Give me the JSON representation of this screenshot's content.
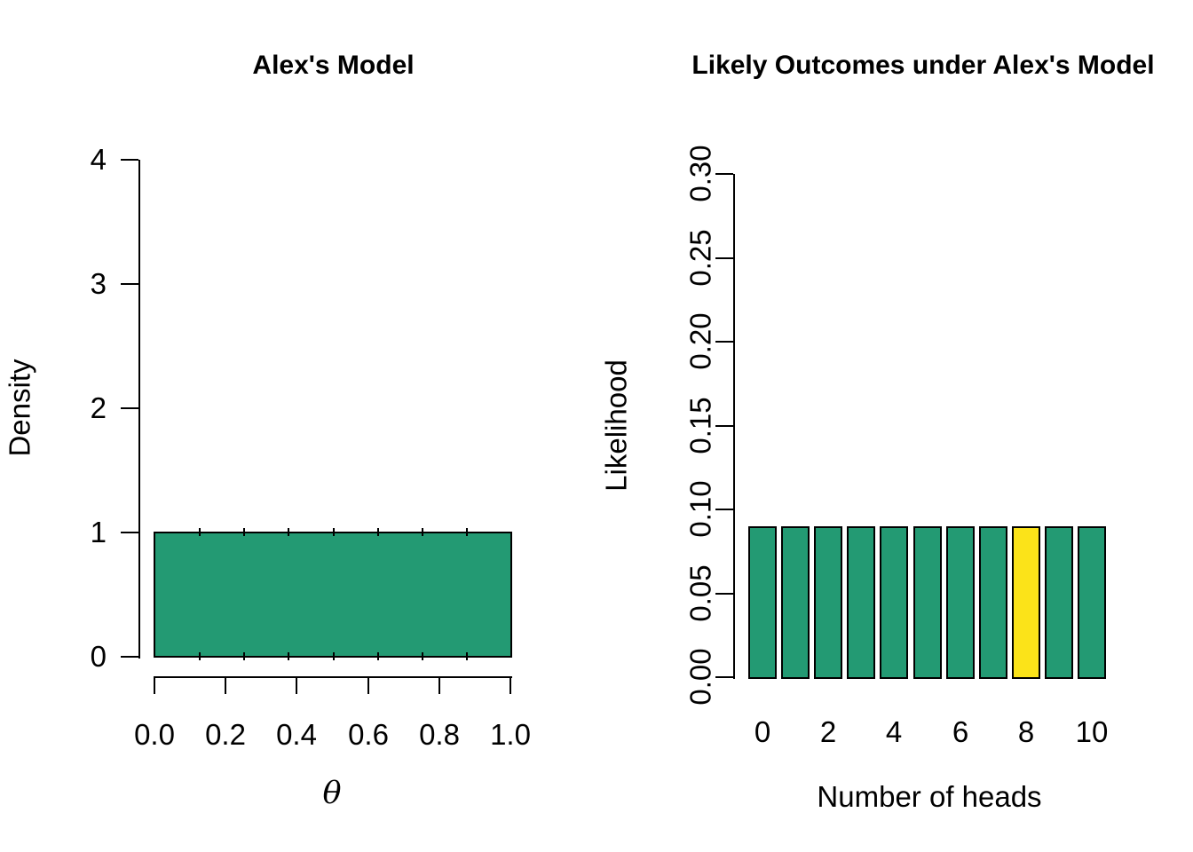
{
  "figure": {
    "background_color": "#ffffff",
    "axis_color": "#000000"
  },
  "chart_data": [
    {
      "type": "area",
      "title": "Alex's Model",
      "xlabel": "θ",
      "ylabel": "Density",
      "distribution": "uniform",
      "density_height": 1,
      "x_range": [
        0.0,
        1.0
      ],
      "xlim": [
        0.0,
        1.0
      ],
      "ylim": [
        0,
        4
      ],
      "x_ticks": [
        "0.0",
        "0.2",
        "0.4",
        "0.6",
        "0.8",
        "1.0"
      ],
      "y_ticks": [
        "0",
        "1",
        "2",
        "3",
        "4"
      ],
      "bins": 8,
      "grid": "off",
      "fill_color": "#239a73",
      "border_color": "#000000"
    },
    {
      "type": "bar",
      "title": "Likely Outcomes under Alex's Model",
      "xlabel": "Number of heads",
      "ylabel": "Likelihood",
      "categories": [
        0,
        1,
        2,
        3,
        4,
        5,
        6,
        7,
        8,
        9,
        10
      ],
      "values": [
        0.0909,
        0.0909,
        0.0909,
        0.0909,
        0.0909,
        0.0909,
        0.0909,
        0.0909,
        0.0909,
        0.0909,
        0.0909
      ],
      "x_tick_labels": [
        "0",
        "2",
        "4",
        "6",
        "8",
        "10"
      ],
      "y_ticks": [
        "0.00",
        "0.05",
        "0.10",
        "0.15",
        "0.20",
        "0.25",
        "0.30"
      ],
      "ylim": [
        0.0,
        0.3
      ],
      "grid": "off",
      "bar_color": "#239a73",
      "highlight_category": 8,
      "highlight_color": "#fbe319",
      "border_color": "#000000"
    }
  ]
}
